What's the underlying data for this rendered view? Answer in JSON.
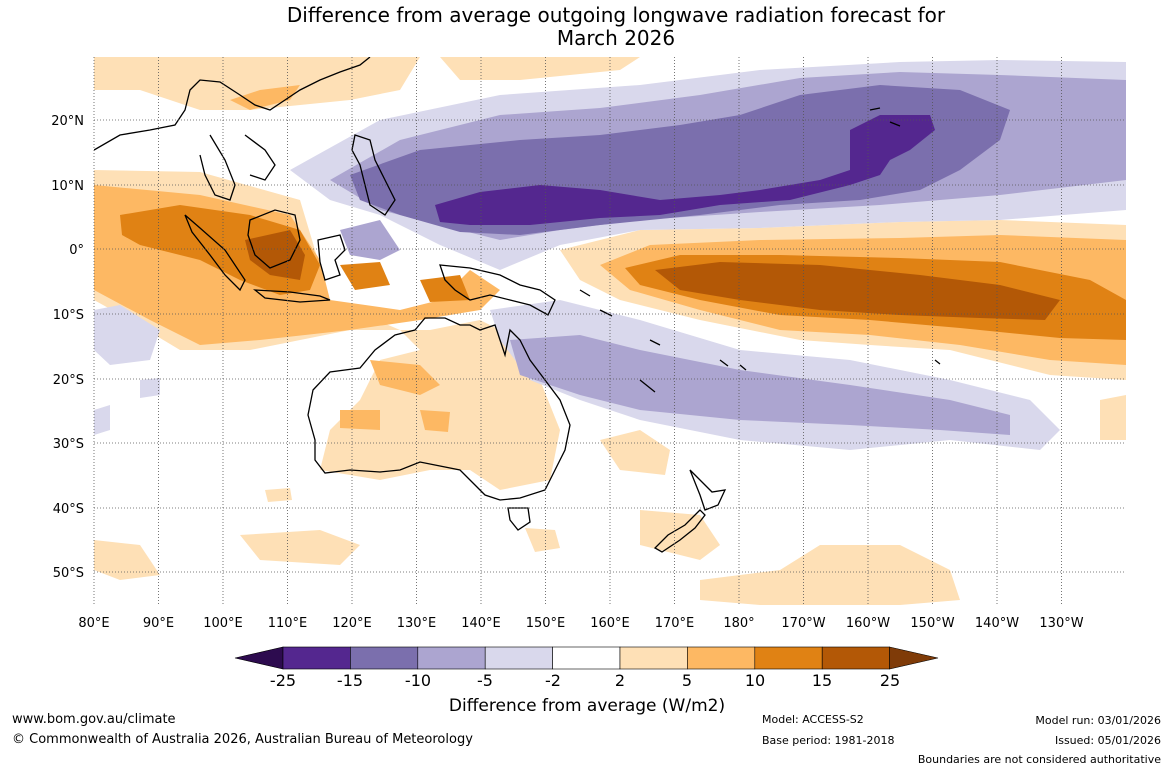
{
  "title": {
    "line1": "Difference from average outgoing longwave radiation forecast for",
    "line2": "March 2026"
  },
  "map": {
    "lon_labels": [
      "80°E",
      "90°E",
      "100°E",
      "110°E",
      "120°E",
      "130°E",
      "140°E",
      "150°E",
      "160°E",
      "170°E",
      "180°",
      "170°W",
      "160°W",
      "150°W",
      "140°W",
      "130°W"
    ],
    "lat_labels": [
      "20°N",
      "10°N",
      "0°",
      "10°S",
      "20°S",
      "30°S",
      "40°S",
      "50°S"
    ]
  },
  "colorbar": {
    "levels": [
      "-25",
      "-15",
      "-10",
      "-5",
      "-2",
      "2",
      "5",
      "10",
      "15",
      "25"
    ],
    "colors": {
      "lt_-25": "#2d0b4f",
      "-25_-15": "#54278f",
      "-15_-10": "#7b6fad",
      "-10_-5": "#aca5d0",
      "-5_-2": "#d9d8ec",
      "-2_2": "#ffffff",
      "2_5": "#fee0b6",
      "5_10": "#fdb863",
      "10_15": "#e08214",
      "15_25": "#b35806",
      "gt_25": "#7f3b08"
    },
    "title": "Difference from average (W/m2)"
  },
  "footer": {
    "website": "www.bom.gov.au/climate",
    "copyright": "© Commonwealth of Australia 2026, Australian Bureau of Meteorology",
    "model": "Model: ACCESS-S2",
    "base_period": "Base period: 1981-2018",
    "model_run": "Model run: 03/01/2026",
    "issued": "Issued: 05/01/2026",
    "disclaimer": "Boundaries are not considered authoritative"
  }
}
